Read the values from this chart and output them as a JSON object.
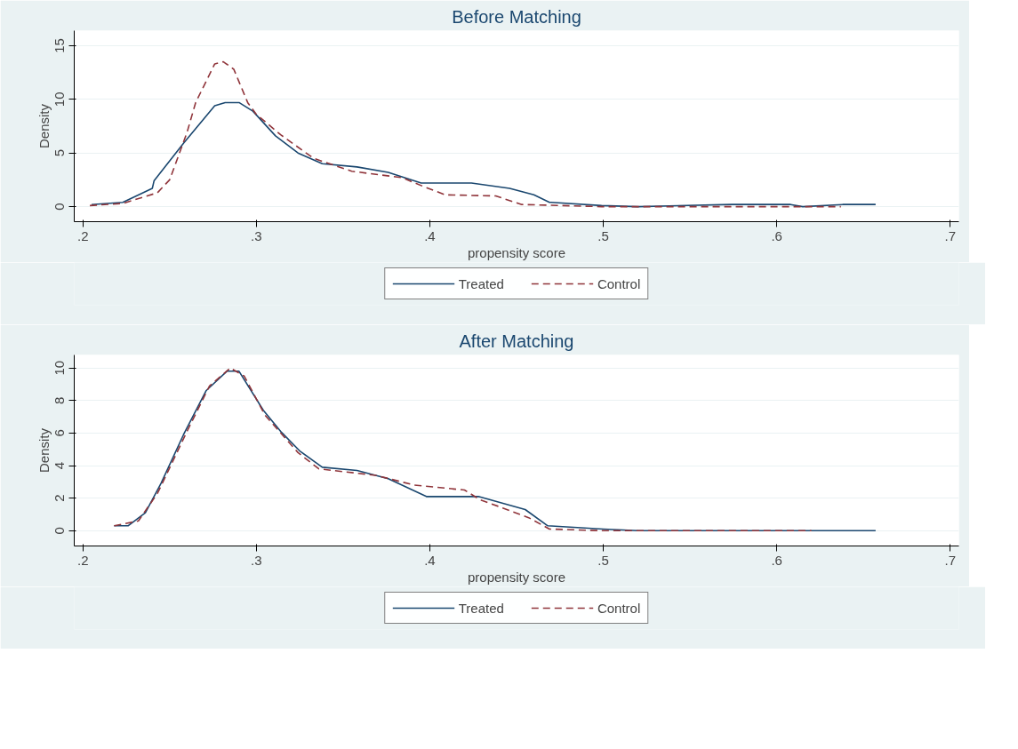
{
  "chart_data": [
    {
      "type": "line",
      "title": "Before Matching",
      "xlabel": "propensity score",
      "ylabel": "Density",
      "grid": "y",
      "legend": "bottom",
      "xlim": [
        0.195,
        0.705
      ],
      "ylim": [
        -1.4,
        16.4
      ],
      "xticks": [
        {
          "value": 0.2,
          "label": ".2"
        },
        {
          "value": 0.3,
          "label": ".3"
        },
        {
          "value": 0.4,
          "label": ".4"
        },
        {
          "value": 0.5,
          "label": ".5"
        },
        {
          "value": 0.6,
          "label": ".6"
        },
        {
          "value": 0.7,
          "label": ".7"
        }
      ],
      "yticks": [
        0,
        5,
        10,
        15
      ],
      "series": [
        {
          "name": "Treated",
          "color": "#1a476f",
          "line_style": "solid",
          "x": [
            0.205,
            0.223,
            0.24,
            0.241,
            0.258,
            0.276,
            0.282,
            0.29,
            0.298,
            0.311,
            0.324,
            0.338,
            0.358,
            0.376,
            0.395,
            0.424,
            0.446,
            0.46,
            0.469,
            0.47,
            0.499,
            0.52,
            0.574,
            0.608,
            0.615,
            0.638,
            0.657
          ],
          "values": [
            0.2,
            0.4,
            1.7,
            2.4,
            5.9,
            9.4,
            9.7,
            9.7,
            8.9,
            6.6,
            5.0,
            4.0,
            3.7,
            3.2,
            2.2,
            2.2,
            1.7,
            1.1,
            0.4,
            0.4,
            0.1,
            0.0,
            0.2,
            0.2,
            0.0,
            0.2,
            0.2
          ]
        },
        {
          "name": "Control",
          "color": "#90353b",
          "line_style": "dashed",
          "x": [
            0.204,
            0.223,
            0.243,
            0.25,
            0.26,
            0.265,
            0.276,
            0.281,
            0.287,
            0.295,
            0.3,
            0.314,
            0.333,
            0.355,
            0.384,
            0.396,
            0.409,
            0.438,
            0.453,
            0.499,
            0.637
          ],
          "values": [
            0.1,
            0.3,
            1.3,
            2.5,
            6.9,
            9.7,
            13.3,
            13.5,
            12.8,
            9.7,
            8.6,
            6.7,
            4.5,
            3.3,
            2.7,
            1.9,
            1.1,
            1.0,
            0.2,
            0.0,
            0.0
          ]
        }
      ]
    },
    {
      "type": "line",
      "title": "After Matching",
      "xlabel": "propensity score",
      "ylabel": "Density",
      "grid": "y",
      "legend": "bottom",
      "xlim": [
        0.195,
        0.705
      ],
      "ylim": [
        -0.94,
        10.8
      ],
      "xticks": [
        {
          "value": 0.2,
          "label": ".2"
        },
        {
          "value": 0.3,
          "label": ".3"
        },
        {
          "value": 0.4,
          "label": ".4"
        },
        {
          "value": 0.5,
          "label": ".5"
        },
        {
          "value": 0.6,
          "label": ".6"
        },
        {
          "value": 0.7,
          "label": ".7"
        }
      ],
      "yticks": [
        0,
        2,
        4,
        6,
        8,
        10
      ],
      "series": [
        {
          "name": "Treated",
          "color": "#1a476f",
          "line_style": "solid",
          "x": [
            0.218,
            0.226,
            0.236,
            0.245,
            0.258,
            0.271,
            0.283,
            0.29,
            0.304,
            0.314,
            0.325,
            0.338,
            0.358,
            0.376,
            0.398,
            0.428,
            0.455,
            0.468,
            0.5,
            0.52,
            0.657
          ],
          "values": [
            0.3,
            0.3,
            1.1,
            2.9,
            5.9,
            8.6,
            9.8,
            9.8,
            7.4,
            6.1,
            4.9,
            3.9,
            3.7,
            3.2,
            2.1,
            2.1,
            1.3,
            0.3,
            0.1,
            0.0,
            0.0
          ]
        },
        {
          "name": "Control",
          "color": "#90353b",
          "line_style": "dashed",
          "x": [
            0.218,
            0.232,
            0.243,
            0.26,
            0.273,
            0.285,
            0.293,
            0.305,
            0.324,
            0.336,
            0.369,
            0.391,
            0.42,
            0.429,
            0.442,
            0.457,
            0.469,
            0.5,
            0.62
          ],
          "values": [
            0.3,
            0.6,
            2.3,
            6.1,
            8.9,
            10.0,
            9.5,
            7.1,
            4.8,
            3.8,
            3.4,
            2.8,
            2.5,
            1.9,
            1.4,
            0.8,
            0.1,
            0.0,
            0.0
          ]
        }
      ]
    }
  ]
}
